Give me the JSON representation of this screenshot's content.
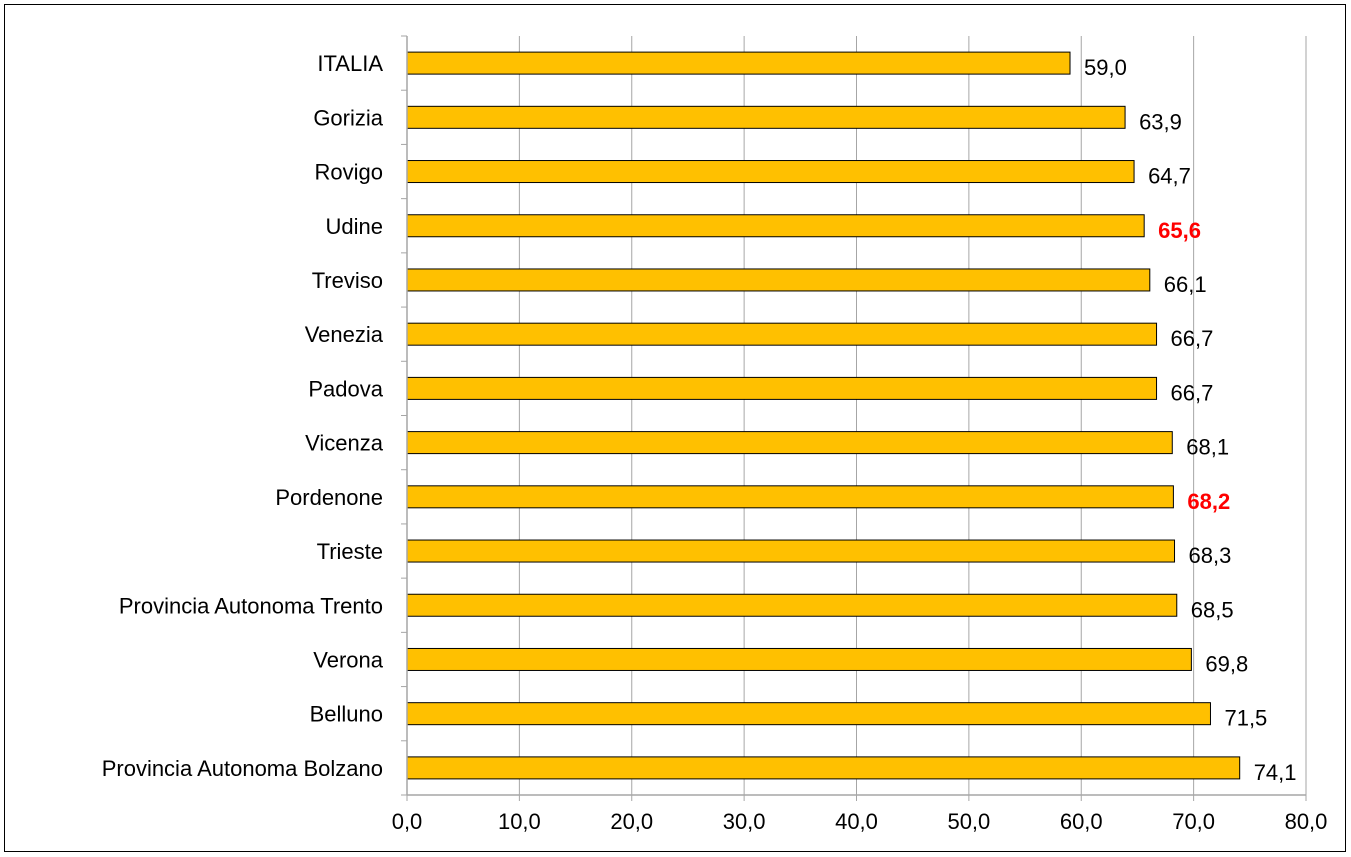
{
  "chart_data": {
    "type": "bar",
    "orientation": "horizontal",
    "categories": [
      "ITALIA",
      "Gorizia",
      "Rovigo",
      "Udine",
      "Treviso",
      "Venezia",
      "Padova",
      "Vicenza",
      "Pordenone",
      "Trieste",
      "Provincia Autonoma Trento",
      "Verona",
      "Belluno",
      "Provincia Autonoma Bolzano"
    ],
    "values": [
      59.0,
      63.9,
      64.7,
      65.6,
      66.1,
      66.7,
      66.7,
      68.1,
      68.2,
      68.3,
      68.5,
      69.8,
      71.5,
      74.1
    ],
    "data_labels": [
      "59,0",
      "63,9",
      "64,7",
      "65,6",
      "66,1",
      "66,7",
      "66,7",
      "68,1",
      "68,2",
      "68,3",
      "68,5",
      "69,8",
      "71,5",
      "74,1"
    ],
    "highlighted_categories": [
      "Udine",
      "Pordenone"
    ],
    "xlim": [
      0,
      80
    ],
    "xticks": [
      "0,0",
      "10,0",
      "20,0",
      "30,0",
      "40,0",
      "50,0",
      "60,0",
      "70,0",
      "80,0"
    ],
    "title": "",
    "xlabel": "",
    "ylabel": "",
    "grid": "vertical",
    "legend": "none",
    "colors": {
      "bar_fill": "#ffc000",
      "bar_stroke": "#000000",
      "gridline": "#a6a6a6",
      "highlight_label": "#ff0000",
      "label": "#000000"
    }
  }
}
